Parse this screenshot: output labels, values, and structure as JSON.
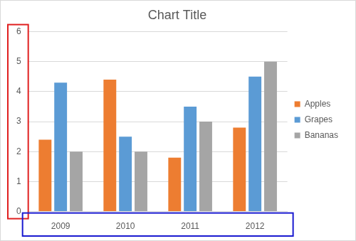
{
  "chart_data": {
    "type": "bar",
    "title": "Chart Title",
    "categories": [
      "2009",
      "2010",
      "2011",
      "2012"
    ],
    "series": [
      {
        "name": "Apples",
        "color": "#ed7d31",
        "values": [
          2.4,
          4.4,
          1.8,
          2.8
        ]
      },
      {
        "name": "Grapes",
        "color": "#5b9bd5",
        "values": [
          4.3,
          2.5,
          3.5,
          4.5
        ]
      },
      {
        "name": "Bananas",
        "color": "#a5a5a5",
        "values": [
          2,
          2,
          3,
          5
        ]
      }
    ],
    "ylim": [
      0,
      6
    ],
    "yticks": [
      0,
      1,
      2,
      3,
      4,
      5,
      6
    ],
    "grid": true,
    "legend": "right"
  }
}
